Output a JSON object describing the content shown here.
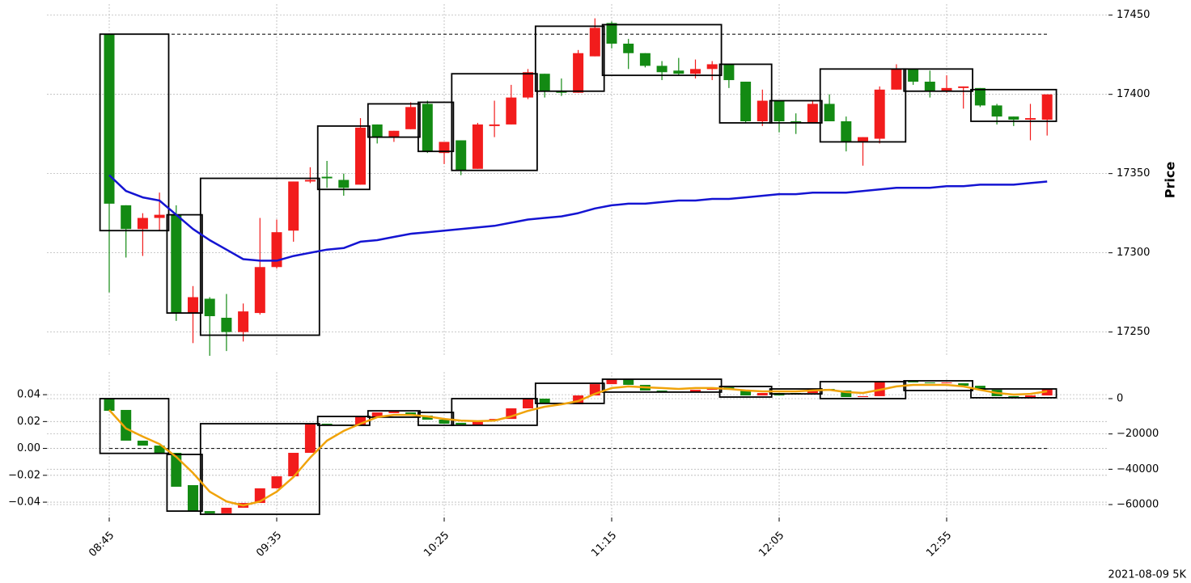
{
  "chart_data": [
    {
      "type": "candlestick",
      "open": [
        17438,
        17330,
        17315,
        17322,
        17324,
        17262,
        17271,
        17259,
        17250,
        17262,
        17291,
        17314,
        17345,
        17348,
        17346,
        17343,
        17381,
        17373,
        17378,
        17394,
        17363,
        17371,
        17353,
        17380,
        17381,
        17398,
        17413,
        17402,
        17401,
        17424,
        17445,
        17432,
        17426,
        17418,
        17415,
        17413,
        17416,
        17419,
        17408,
        17383,
        17396,
        17383,
        17382,
        17394,
        17383,
        17370,
        17372,
        17403,
        17416,
        17408,
        17402,
        17404,
        17404,
        17393,
        17386,
        17384,
        17384
      ],
      "high": [
        17438,
        17330,
        17325,
        17338,
        17330,
        17279,
        17272,
        17274,
        17268,
        17322,
        17321,
        17345,
        17354,
        17358,
        17350,
        17385,
        17381,
        17377,
        17395,
        17396,
        17370,
        17371,
        17382,
        17396,
        17406,
        17416,
        17413,
        17410,
        17428,
        17448,
        17446,
        17435,
        17426,
        17421,
        17423,
        17422,
        17421,
        17419,
        17408,
        17403,
        17396,
        17388,
        17396,
        17400,
        17386,
        17373,
        17405,
        17419,
        17416,
        17415,
        17412,
        17405,
        17404,
        17394,
        17386,
        17394,
        17400
      ],
      "low": [
        17275,
        17297,
        17298,
        17314,
        17257,
        17243,
        17235,
        17238,
        17244,
        17261,
        17290,
        17307,
        17344,
        17341,
        17336,
        17343,
        17369,
        17370,
        17378,
        17363,
        17356,
        17349,
        17353,
        17373,
        17381,
        17397,
        17398,
        17399,
        17401,
        17424,
        17429,
        17416,
        17417,
        17409,
        17412,
        17410,
        17409,
        17404,
        17382,
        17380,
        17376,
        17375,
        17382,
        17383,
        17364,
        17355,
        17369,
        17403,
        17406,
        17398,
        17401,
        17391,
        17392,
        17381,
        17380,
        17371,
        17374
      ],
      "close": [
        17331,
        17315,
        17322,
        17324,
        17262,
        17272,
        17260,
        17250,
        17263,
        17291,
        17313,
        17345,
        17346,
        17347,
        17341,
        17379,
        17373,
        17377,
        17392,
        17364,
        17370,
        17352,
        17381,
        17381,
        17398,
        17414,
        17402,
        17401,
        17426,
        17442,
        17432,
        17426,
        17418,
        17414,
        17413,
        17416,
        17419,
        17409,
        17383,
        17396,
        17383,
        17382,
        17394,
        17383,
        17370,
        17373,
        17403,
        17416,
        17408,
        17402,
        17404,
        17405,
        17393,
        17386,
        17384,
        17385,
        17400
      ],
      "up_color": "#f21c1c",
      "down_color": "#138a13",
      "boxes": [
        {
          "from": 0,
          "to": 3,
          "top": 17438,
          "bottom": 17314
        },
        {
          "from": 4,
          "to": 5,
          "top": 17324,
          "bottom": 17262
        },
        {
          "from": 6,
          "to": 12,
          "top": 17347,
          "bottom": 17248
        },
        {
          "from": 13,
          "to": 15,
          "top": 17380,
          "bottom": 17340
        },
        {
          "from": 16,
          "to": 18,
          "top": 17394,
          "bottom": 17373
        },
        {
          "from": 19,
          "to": 20,
          "top": 17395,
          "bottom": 17364
        },
        {
          "from": 21,
          "to": 25,
          "top": 17413,
          "bottom": 17352
        },
        {
          "from": 26,
          "to": 29,
          "top": 17443,
          "bottom": 17402
        },
        {
          "from": 30,
          "to": 36,
          "top": 17444,
          "bottom": 17412
        },
        {
          "from": 37,
          "to": 39,
          "top": 17419,
          "bottom": 17382
        },
        {
          "from": 40,
          "to": 42,
          "top": 17396,
          "bottom": 17382
        },
        {
          "from": 43,
          "to": 47,
          "top": 17416,
          "bottom": 17370
        },
        {
          "from": 48,
          "to": 51,
          "top": 17416,
          "bottom": 17402
        },
        {
          "from": 52,
          "to": 56,
          "top": 17403,
          "bottom": 17383
        }
      ],
      "reference": 17438,
      "line": {
        "color": "#1414d2",
        "values": [
          17349,
          17339,
          17335,
          17333,
          17324,
          17315,
          17308,
          17302,
          17296,
          17295,
          17295,
          17298,
          17300,
          17302,
          17303,
          17307,
          17308,
          17310,
          17312,
          17313,
          17314,
          17315,
          17316,
          17317,
          17319,
          17321,
          17322,
          17323,
          17325,
          17328,
          17330,
          17331,
          17331,
          17332,
          17333,
          17333,
          17334,
          17334,
          17335,
          17336,
          17337,
          17337,
          17338,
          17338,
          17338,
          17339,
          17340,
          17341,
          17341,
          17341,
          17342,
          17342,
          17343,
          17343,
          17343,
          17344,
          17345
        ]
      },
      "ylim": [
        17235,
        17457
      ],
      "yticks": [
        17250,
        17300,
        17350,
        17400,
        17450
      ],
      "ylabel": "Price",
      "grid": true
    },
    {
      "type": "candlestick",
      "categories": [
        "08:45",
        null,
        null,
        null,
        null,
        null,
        null,
        null,
        null,
        null,
        "09:35",
        null,
        null,
        null,
        null,
        null,
        null,
        null,
        null,
        null,
        "10:25",
        null,
        null,
        null,
        null,
        null,
        null,
        null,
        null,
        null,
        "11:15",
        null,
        null,
        null,
        null,
        null,
        null,
        null,
        null,
        null,
        "12:05",
        null,
        null,
        null,
        null,
        null,
        null,
        null,
        null,
        null,
        "12:55",
        null,
        null,
        null,
        null,
        null,
        null
      ],
      "open": [
        0,
        -6400,
        -23800,
        -26600,
        -30700,
        -49000,
        -63700,
        -65000,
        -61800,
        -59100,
        -50800,
        -44000,
        -30700,
        -14200,
        -14700,
        -15100,
        -10100,
        -8200,
        -7800,
        -9600,
        -11900,
        -13700,
        -14700,
        -12400,
        -11500,
        -5500,
        0,
        -2700,
        -3200,
        1800,
        8200,
        11000,
        7800,
        4600,
        4100,
        3700,
        5000,
        6400,
        5000,
        1800,
        3200,
        3200,
        3200,
        5500,
        4600,
        900,
        1400,
        9600,
        10100,
        9200,
        8700,
        8700,
        7300,
        5000,
        1400,
        900,
        1800
      ],
      "close": [
        -6900,
        -23800,
        -26600,
        -30700,
        -49900,
        -63700,
        -65000,
        -61800,
        -59100,
        -50800,
        -44000,
        -30700,
        -14200,
        -14700,
        -15100,
        -10100,
        -7800,
        -7300,
        -9600,
        -11900,
        -14200,
        -14700,
        -12400,
        -11500,
        -5500,
        0,
        -2700,
        -3200,
        1800,
        8200,
        11000,
        7800,
        4600,
        4100,
        3700,
        5000,
        6400,
        5000,
        1800,
        3200,
        1800,
        2700,
        5500,
        4600,
        900,
        1400,
        9600,
        10100,
        9200,
        8700,
        9200,
        7300,
        5000,
        1400,
        900,
        1800,
        5500
      ],
      "up_color": "#f21c1c",
      "down_color": "#138a13",
      "boxes": [
        {
          "from": 0,
          "to": 3,
          "top": 0,
          "bottom": -31000
        },
        {
          "from": 4,
          "to": 5,
          "top": -31600,
          "bottom": -63700
        },
        {
          "from": 6,
          "to": 12,
          "top": -14200,
          "bottom": -65500
        },
        {
          "from": 13,
          "to": 15,
          "top": -10100,
          "bottom": -15100
        },
        {
          "from": 16,
          "to": 18,
          "top": -6900,
          "bottom": -10500
        },
        {
          "from": 19,
          "to": 20,
          "top": -7800,
          "bottom": -15100
        },
        {
          "from": 21,
          "to": 25,
          "top": 0,
          "bottom": -15100
        },
        {
          "from": 26,
          "to": 29,
          "top": 8700,
          "bottom": -2700
        },
        {
          "from": 30,
          "to": 36,
          "top": 11000,
          "bottom": 3700
        },
        {
          "from": 37,
          "to": 39,
          "top": 6900,
          "bottom": 900
        },
        {
          "from": 40,
          "to": 42,
          "top": 5500,
          "bottom": 2700
        },
        {
          "from": 43,
          "to": 47,
          "top": 9600,
          "bottom": 0
        },
        {
          "from": 48,
          "to": 51,
          "top": 10100,
          "bottom": 4600
        },
        {
          "from": 52,
          "to": 56,
          "top": 5500,
          "bottom": 500
        }
      ],
      "reference": 0,
      "line": {
        "color": "#f0a30a",
        "axis": "y2",
        "values": [
          -6400,
          -16900,
          -21500,
          -25700,
          -33000,
          -42100,
          -52700,
          -58200,
          -60500,
          -58200,
          -52700,
          -44400,
          -33400,
          -23800,
          -18300,
          -14200,
          -10500,
          -9200,
          -9200,
          -10100,
          -11500,
          -12400,
          -12800,
          -12400,
          -10100,
          -6900,
          -4600,
          -3200,
          -1400,
          2700,
          6000,
          6900,
          6400,
          6000,
          5500,
          6000,
          6000,
          5500,
          4600,
          4100,
          4100,
          4100,
          4600,
          5000,
          3700,
          3200,
          5000,
          6900,
          7800,
          7800,
          7800,
          6900,
          5000,
          3200,
          2300,
          2700,
          4100
        ]
      },
      "ylim": [
        -0.0514,
        0.0569
      ],
      "yticks": [
        {
          "value": 0.04,
          "label": "0.04"
        },
        {
          "value": 0.02,
          "label": "0.02"
        },
        {
          "value": 0,
          "label": "0.00"
        },
        {
          "value": -0.02,
          "label": "−0.02"
        },
        {
          "value": -0.04,
          "label": "−0.04"
        }
      ],
      "y2lim": [
        -67330,
        15110
      ],
      "y2ticks": [
        0,
        {
          "value": -20000,
          "label": "−20000"
        },
        {
          "value": -40000,
          "label": "−40000"
        },
        {
          "value": -60000,
          "label": "−60000"
        }
      ],
      "grid": true
    }
  ],
  "footer": "2021-08-09 5K"
}
